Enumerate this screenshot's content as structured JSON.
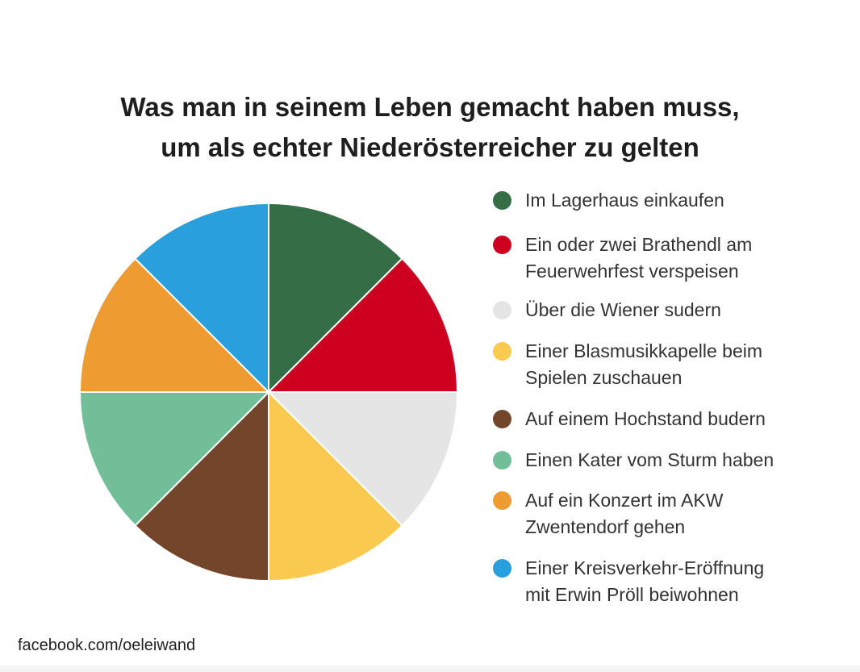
{
  "chart_data": {
    "type": "pie",
    "title_lines": [
      "Was man in seinem Leben gemacht haben muss,",
      "um als echter Niederösterreicher zu gelten"
    ],
    "slices": [
      {
        "label": "Im Lagerhaus einkaufen",
        "value": 12.5,
        "color": "#356d46"
      },
      {
        "label": "Ein oder zwei Brathendl am\nFeuerwehrfest verspeisen",
        "value": 12.5,
        "color": "#cd0020"
      },
      {
        "label": "Über die Wiener sudern",
        "value": 12.5,
        "color": "#e5e5e5"
      },
      {
        "label": "Einer Blasmusikkapelle beim\nSpielen zuschauen",
        "value": 12.5,
        "color": "#fac94f"
      },
      {
        "label": "Auf einem Hochstand budern",
        "value": 12.5,
        "color": "#73452a"
      },
      {
        "label": "Einen Kater vom Sturm haben",
        "value": 12.5,
        "color": "#72be98"
      },
      {
        "label": "Auf ein Konzert im AKW\nZwentendorf gehen",
        "value": 12.5,
        "color": "#ee9c31"
      },
      {
        "label": "Einer Kreisverkehr-Eröffnung\nmit Erwin Pröll beiwohnen",
        "value": 12.5,
        "color": "#2a9fdd"
      }
    ],
    "legend_position": "right"
  },
  "footer": "facebook.com/oeleiwand"
}
